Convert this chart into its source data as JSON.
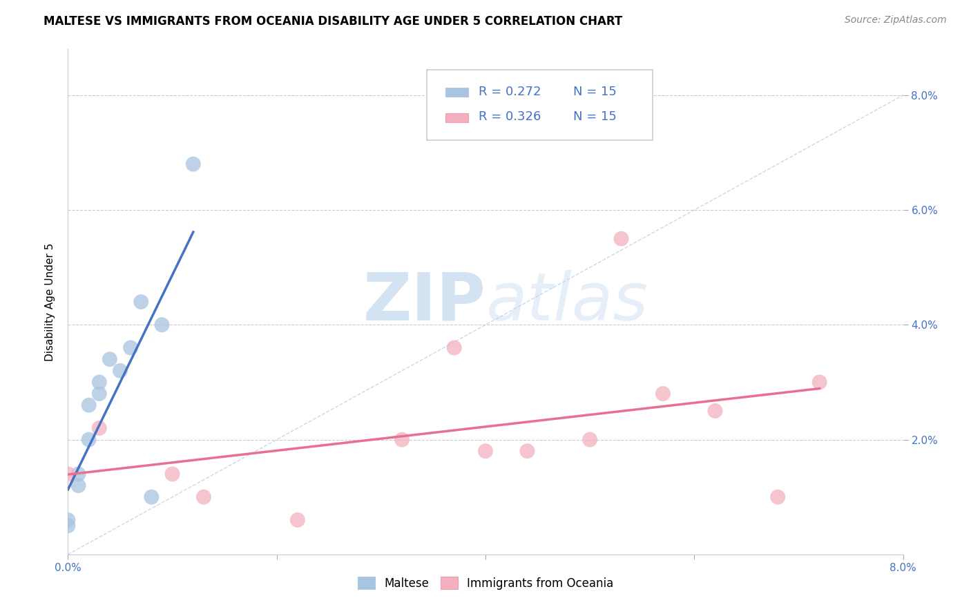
{
  "title": "MALTESE VS IMMIGRANTS FROM OCEANIA DISABILITY AGE UNDER 5 CORRELATION CHART",
  "source": "Source: ZipAtlas.com",
  "ylabel": "Disability Age Under 5",
  "xlim": [
    0.0,
    0.08
  ],
  "ylim": [
    0.0,
    0.088
  ],
  "yticks": [
    0.02,
    0.04,
    0.06,
    0.08
  ],
  "ytick_labels": [
    "2.0%",
    "4.0%",
    "6.0%",
    "8.0%"
  ],
  "xticks": [
    0.0,
    0.02,
    0.04,
    0.06,
    0.08
  ],
  "xtick_labels_show": [
    "0.0%",
    "8.0%"
  ],
  "legend_r1": "R = 0.272",
  "legend_n1": "N = 15",
  "legend_r2": "R = 0.326",
  "legend_n2": "N = 15",
  "maltese_x": [
    0.0,
    0.0,
    0.001,
    0.001,
    0.002,
    0.002,
    0.003,
    0.003,
    0.004,
    0.005,
    0.006,
    0.007,
    0.008,
    0.009,
    0.012
  ],
  "maltese_y": [
    0.006,
    0.005,
    0.014,
    0.012,
    0.02,
    0.026,
    0.028,
    0.03,
    0.034,
    0.032,
    0.036,
    0.044,
    0.01,
    0.04,
    0.068
  ],
  "oceania_x": [
    0.0,
    0.003,
    0.01,
    0.013,
    0.022,
    0.032,
    0.037,
    0.04,
    0.044,
    0.05,
    0.053,
    0.057,
    0.062,
    0.068,
    0.072
  ],
  "oceania_y": [
    0.014,
    0.022,
    0.014,
    0.01,
    0.006,
    0.02,
    0.036,
    0.018,
    0.018,
    0.02,
    0.055,
    0.028,
    0.025,
    0.01,
    0.03
  ],
  "maltese_color": "#a8c4e0",
  "oceania_color": "#f4b0be",
  "maltese_line_color": "#4472c4",
  "oceania_line_color": "#e87090",
  "diagonal_color": "#b8d0ea",
  "watermark_color": "#d8eaf6",
  "title_fontsize": 12,
  "axis_label_fontsize": 11,
  "tick_fontsize": 11,
  "legend_fontsize": 13
}
